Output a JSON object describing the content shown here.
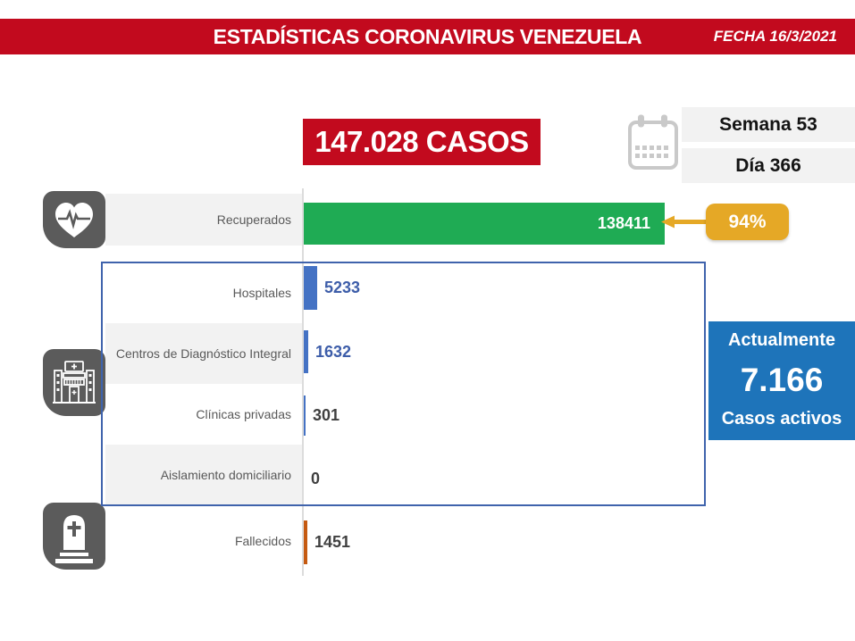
{
  "banner": {
    "title": "ESTADÍSTICAS CORONAVIRUS VENEZUELA",
    "date": "FECHA 16/3/2021"
  },
  "totals": {
    "cases": "147.028 CASOS",
    "week": "Semana 53",
    "day": "Día 366"
  },
  "recovered_badge": {
    "percent": "94%"
  },
  "active_box": {
    "heading": "Actualmente",
    "value": "7.166",
    "caption": "Casos activos"
  },
  "chart_data": {
    "type": "bar",
    "orientation": "horizontal",
    "categories": [
      "Recuperados",
      "Hospitales",
      "Centros de Diagnóstico Integral",
      "Clínicas privadas",
      "Aislamiento domiciliario",
      "Fallecidos"
    ],
    "values": [
      138411,
      5233,
      1632,
      301,
      0,
      1451
    ],
    "display_values": [
      "138411",
      "5233",
      "1632",
      "301",
      "0",
      "1451"
    ],
    "bar_colors": [
      "#1FAB54",
      "#4472C4",
      "#4472C4",
      "#4472C4",
      "#4472C4",
      "#C55A11"
    ],
    "value_label_colors": [
      "#FFFFFF",
      "#3D5DA9",
      "#3D5DA9",
      "#404040",
      "#404040",
      "#404040"
    ],
    "xlim": [
      0,
      147028
    ],
    "legend": "none",
    "grid": "off"
  },
  "icons": {
    "recovered": "heart-pulse-icon",
    "active": "hospital-icon",
    "deceased": "tombstone-icon",
    "calendar": "calendar-icon"
  },
  "colors": {
    "banner_red": "#C20A1E",
    "green": "#1FAB54",
    "gold": "#E5A826",
    "bar_blue": "#4472C4",
    "orange": "#C55A11",
    "active_blue": "#1E74BA",
    "outline_blue": "#3F63AC",
    "icon_gray": "#5B5B5B",
    "band_gray": "#F2F2F2"
  }
}
